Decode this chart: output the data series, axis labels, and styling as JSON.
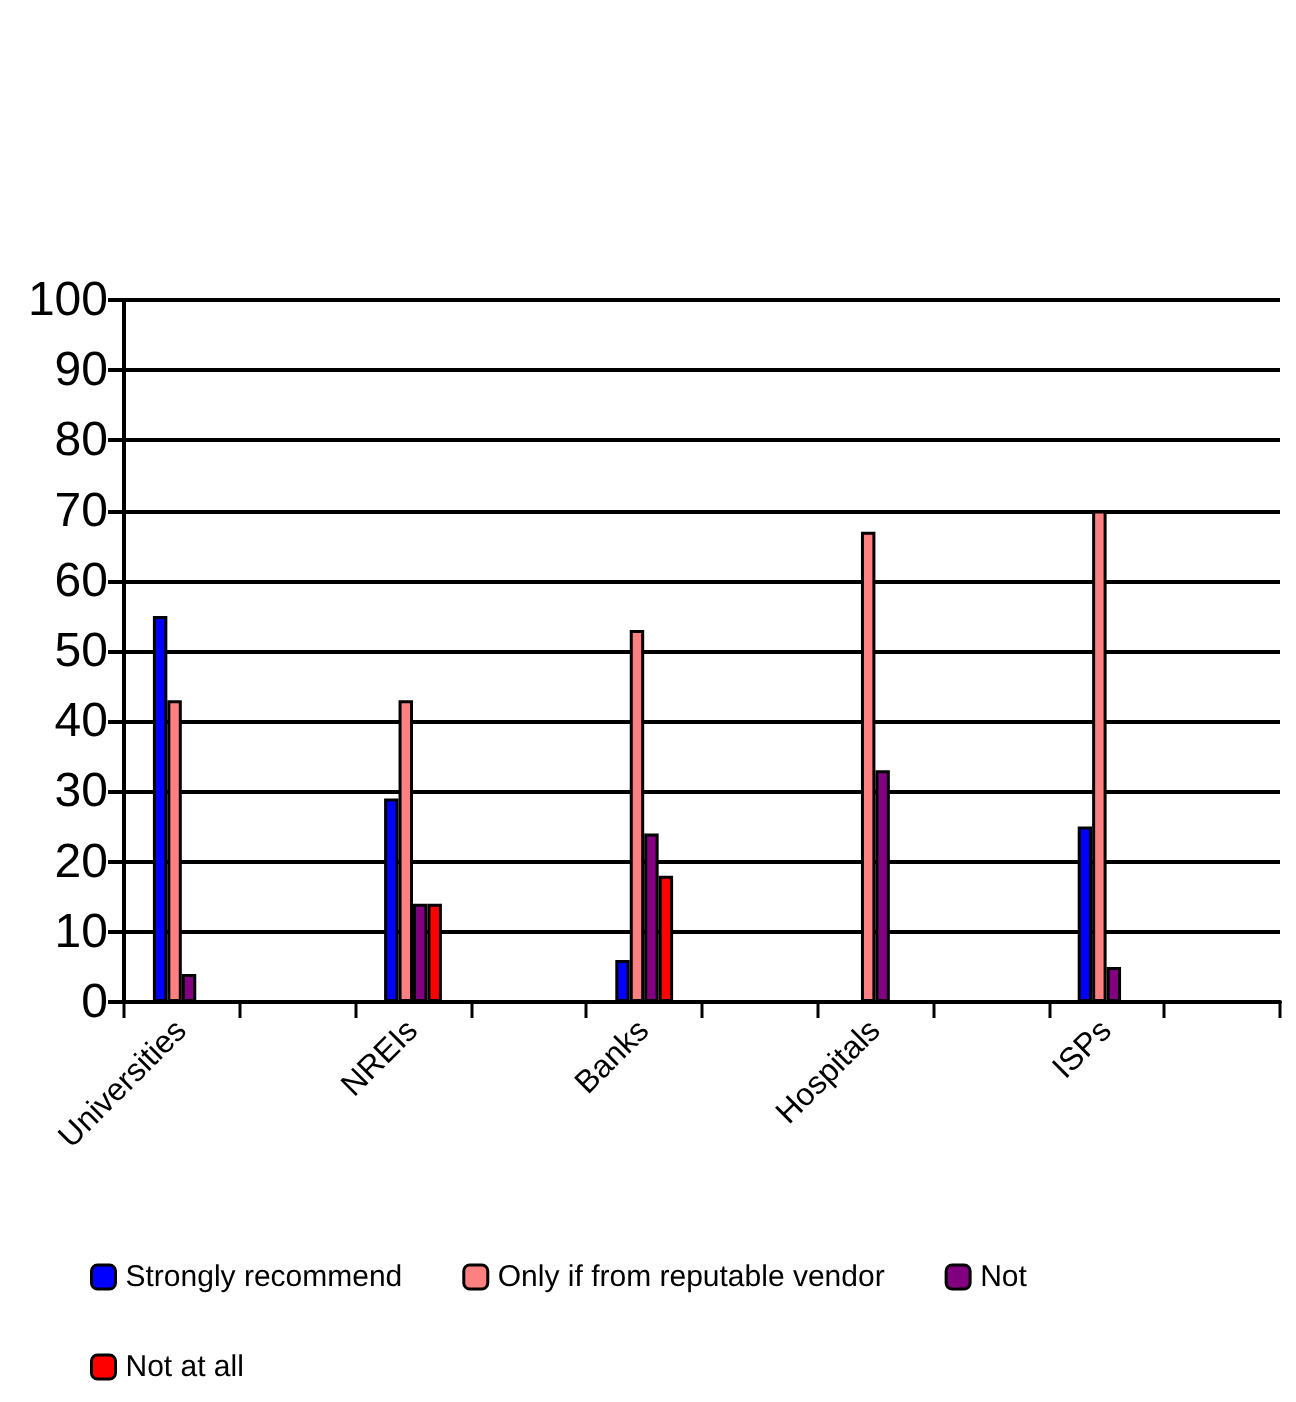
{
  "chart_data": {
    "type": "bar",
    "categories": [
      "Universities",
      null,
      "NREIs",
      null,
      "Banks",
      null,
      "Hospitals",
      null,
      "ISPs",
      null
    ],
    "series": [
      {
        "name": "Strongly recommend",
        "color": "#0000ff",
        "values": [
          55,
          null,
          29,
          null,
          6,
          null,
          null,
          null,
          25,
          null
        ]
      },
      {
        "name": "Only if from reputable vendor",
        "color": "#ff8080",
        "values": [
          43,
          null,
          43,
          null,
          53,
          null,
          67,
          null,
          70,
          null
        ]
      },
      {
        "name": "Not",
        "color": "#800080",
        "values": [
          4,
          null,
          14,
          null,
          24,
          null,
          33,
          null,
          5,
          null
        ]
      },
      {
        "name": "Not at all",
        "color": "#ff0000",
        "values": [
          null,
          null,
          14,
          null,
          18,
          null,
          null,
          null,
          null,
          null
        ]
      }
    ],
    "ylim": [
      0,
      100
    ],
    "yticks": [
      0,
      10,
      20,
      30,
      40,
      50,
      60,
      70,
      80,
      90,
      100
    ],
    "grid": "y",
    "legend": "bottom"
  }
}
